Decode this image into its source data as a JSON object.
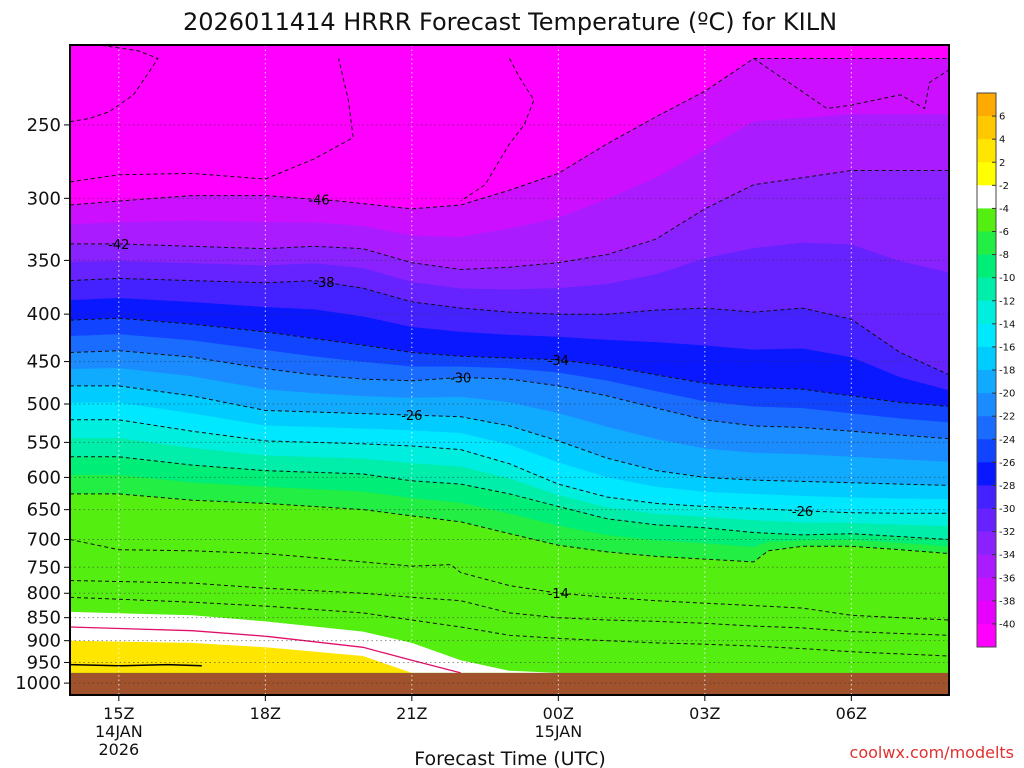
{
  "chart_data": {
    "type": "heatmap",
    "title": "2026011414 HRRR Forecast Temperature (ºC) for KILN",
    "xlabel": "Forecast Time (UTC)",
    "credit": "coolwx.com/modelts",
    "y_axis": {
      "scale": "pressure (log)",
      "range": [
        1030,
        205
      ],
      "ticks": [
        250,
        300,
        350,
        400,
        450,
        500,
        550,
        600,
        650,
        700,
        750,
        800,
        850,
        900,
        950,
        1000
      ]
    },
    "x_axis": {
      "range_hours": [
        14.0,
        32.0
      ],
      "ticks": [
        {
          "hour": 15,
          "label": "15Z",
          "sub": "14JAN",
          "sub2": "2026"
        },
        {
          "hour": 18,
          "label": "18Z",
          "sub": "",
          "sub2": ""
        },
        {
          "hour": 21,
          "label": "21Z",
          "sub": "",
          "sub2": ""
        },
        {
          "hour": 24,
          "label": "00Z",
          "sub": "15JAN",
          "sub2": ""
        },
        {
          "hour": 27,
          "label": "03Z",
          "sub": "",
          "sub2": ""
        },
        {
          "hour": 30,
          "label": "06Z",
          "sub": "",
          "sub2": ""
        }
      ]
    },
    "grid": "dotted",
    "ground_pressure": 975,
    "colorbar": {
      "labels": [
        "6",
        "4",
        "2",
        "-2",
        "-4",
        "-6",
        "-8",
        "-10",
        "-12",
        "-14",
        "-16",
        "-18",
        "-20",
        "-22",
        "-24",
        "-26",
        "-28",
        "-30",
        "-32",
        "-34",
        "-36",
        "-38",
        "-40"
      ],
      "colors": [
        "#ffaa00",
        "#ffc800",
        "#ffe600",
        "#ffff00",
        "#ffffff",
        "#55ee11",
        "#22ee44",
        "#00ee77",
        "#00eeaa",
        "#00eedd",
        "#00e8ff",
        "#00ccff",
        "#10aaff",
        "#1a8cff",
        "#1a6cff",
        "#1144ff",
        "#0a18ff",
        "#4422ff",
        "#6622ff",
        "#8a22ff",
        "#aa1cff",
        "#cc10ff",
        "#e800ff",
        "#ff00ff"
      ]
    },
    "isotherms": [
      {
        "temp": -46,
        "label": "-46",
        "label_at_hour": 19.1,
        "points": [
          [
            14,
            305
          ],
          [
            15,
            302
          ],
          [
            16.5,
            298
          ],
          [
            18,
            298
          ],
          [
            19.5,
            302
          ],
          [
            21,
            308
          ],
          [
            22,
            305
          ],
          [
            23,
            294
          ],
          [
            24,
            282
          ],
          [
            25,
            262
          ],
          [
            26,
            245
          ],
          [
            27,
            230
          ],
          [
            28,
            212
          ]
        ]
      },
      {
        "temp": -42,
        "label": "-42",
        "label_at_hour": 15.0,
        "points": [
          [
            14,
            336
          ],
          [
            15,
            336
          ],
          [
            16.5,
            338
          ],
          [
            18,
            340
          ],
          [
            19,
            338
          ],
          [
            20,
            340
          ],
          [
            21,
            352
          ],
          [
            22,
            358
          ],
          [
            23,
            356
          ],
          [
            24,
            352
          ],
          [
            25,
            345
          ],
          [
            26,
            332
          ],
          [
            27,
            308
          ],
          [
            28,
            290
          ],
          [
            29,
            285
          ],
          [
            30,
            280
          ]
        ]
      },
      {
        "temp": -38,
        "label": "-38",
        "label_at_hour": 19.2,
        "points": [
          [
            14,
            368
          ],
          [
            15,
            366
          ],
          [
            16.5,
            368
          ],
          [
            18,
            370
          ],
          [
            19,
            368
          ],
          [
            20,
            375
          ],
          [
            21,
            388
          ],
          [
            22,
            394
          ],
          [
            23,
            398
          ],
          [
            24,
            400
          ],
          [
            25,
            400
          ],
          [
            26,
            396
          ],
          [
            27,
            394
          ],
          [
            28,
            398
          ],
          [
            29,
            394
          ],
          [
            30,
            405
          ],
          [
            31,
            440
          ],
          [
            32,
            465
          ]
        ]
      },
      {
        "temp": -34,
        "label": "-34",
        "label_at_hour": 24.0,
        "points": [
          [
            14,
            406
          ],
          [
            15,
            404
          ],
          [
            16.5,
            410
          ],
          [
            18,
            418
          ],
          [
            19,
            425
          ],
          [
            20,
            432
          ],
          [
            21,
            440
          ],
          [
            22,
            444
          ],
          [
            23,
            446
          ],
          [
            24,
            448
          ],
          [
            25,
            455
          ],
          [
            26,
            465
          ],
          [
            27,
            475
          ],
          [
            28,
            480
          ],
          [
            29,
            482
          ],
          [
            30,
            490
          ],
          [
            31,
            498
          ],
          [
            32,
            503
          ]
        ]
      },
      {
        "temp": -30,
        "label": "-30",
        "label_at_hour": 22.0,
        "points": [
          [
            14,
            440
          ],
          [
            15,
            438
          ],
          [
            16.5,
            445
          ],
          [
            18,
            458
          ],
          [
            19,
            465
          ],
          [
            20,
            470
          ],
          [
            21,
            472
          ],
          [
            22,
            468
          ],
          [
            23,
            470
          ],
          [
            24,
            478
          ],
          [
            25,
            490
          ],
          [
            26,
            505
          ],
          [
            27,
            520
          ],
          [
            28,
            528
          ],
          [
            29,
            530
          ],
          [
            30,
            535
          ],
          [
            31,
            540
          ],
          [
            32,
            545
          ]
        ]
      },
      {
        "temp": -26,
        "label": "-26",
        "label_at_hour": 21.0,
        "points": [
          [
            14,
            478
          ],
          [
            15,
            478
          ],
          [
            16.5,
            490
          ],
          [
            18,
            508
          ],
          [
            19,
            510
          ],
          [
            20,
            512
          ],
          [
            21,
            514
          ],
          [
            22,
            516
          ],
          [
            23,
            528
          ],
          [
            24,
            548
          ],
          [
            25,
            572
          ],
          [
            26,
            590
          ],
          [
            27,
            600
          ],
          [
            28,
            604
          ],
          [
            29,
            606
          ],
          [
            30,
            608
          ],
          [
            31,
            610
          ],
          [
            32,
            612
          ]
        ]
      },
      {
        "temp": -26,
        "label": "-26",
        "label_at_hour": 29.0,
        "points": [
          [
            14,
            520
          ],
          [
            15,
            520
          ],
          [
            16.5,
            535
          ],
          [
            18,
            548
          ],
          [
            20,
            552
          ],
          [
            21,
            555
          ],
          [
            22,
            560
          ],
          [
            23,
            580
          ],
          [
            24,
            610
          ],
          [
            25,
            630
          ],
          [
            26,
            640
          ],
          [
            27,
            645
          ],
          [
            28,
            648
          ],
          [
            29,
            652
          ],
          [
            30,
            655
          ],
          [
            31,
            656
          ],
          [
            32,
            656
          ]
        ]
      },
      {
        "temp": -22,
        "label": "",
        "label_at_hour": null,
        "points": [
          [
            14,
            570
          ],
          [
            15,
            570
          ],
          [
            16.5,
            582
          ],
          [
            18,
            590
          ],
          [
            20,
            595
          ],
          [
            21,
            605
          ],
          [
            22,
            610
          ],
          [
            23,
            625
          ],
          [
            24,
            645
          ],
          [
            25,
            665
          ],
          [
            26,
            675
          ],
          [
            27,
            680
          ],
          [
            28,
            688
          ],
          [
            29,
            692
          ],
          [
            30,
            690
          ],
          [
            31,
            695
          ],
          [
            32,
            700
          ]
        ]
      },
      {
        "temp": -18,
        "label": "",
        "label_at_hour": null,
        "points": [
          [
            14,
            625
          ],
          [
            15,
            625
          ],
          [
            16.5,
            635
          ],
          [
            18,
            640
          ],
          [
            20,
            650
          ],
          [
            21,
            660
          ],
          [
            22,
            670
          ],
          [
            23,
            690
          ],
          [
            24,
            710
          ],
          [
            25,
            722
          ],
          [
            26,
            730
          ],
          [
            27,
            735
          ],
          [
            28,
            740
          ],
          [
            28.3,
            720
          ],
          [
            29,
            712
          ],
          [
            30,
            712
          ],
          [
            31,
            718
          ],
          [
            32,
            725
          ]
        ]
      },
      {
        "temp": -14,
        "label": "-14",
        "label_at_hour": 24.0,
        "points": [
          [
            14,
            700
          ],
          [
            15,
            718
          ],
          [
            16.5,
            720
          ],
          [
            18,
            725
          ],
          [
            20,
            740
          ],
          [
            21,
            748
          ],
          [
            21.8,
            745
          ],
          [
            22,
            760
          ],
          [
            23,
            785
          ],
          [
            24,
            800
          ],
          [
            25,
            808
          ],
          [
            26,
            815
          ],
          [
            27,
            820
          ],
          [
            28,
            825
          ],
          [
            29,
            830
          ],
          [
            30,
            845
          ],
          [
            31,
            850
          ],
          [
            32,
            855
          ]
        ]
      },
      {
        "temp": -10,
        "label": "",
        "label_at_hour": null,
        "points": [
          [
            14,
            775
          ],
          [
            15,
            777
          ],
          [
            16.5,
            780
          ],
          [
            18,
            790
          ],
          [
            20,
            800
          ],
          [
            21,
            808
          ],
          [
            22,
            815
          ],
          [
            23,
            840
          ],
          [
            24,
            850
          ],
          [
            25,
            855
          ],
          [
            26,
            858
          ],
          [
            27,
            862
          ],
          [
            28,
            868
          ],
          [
            29,
            872
          ],
          [
            30,
            880
          ],
          [
            31,
            884
          ],
          [
            32,
            888
          ]
        ]
      },
      {
        "temp": -6,
        "label": "",
        "label_at_hour": null,
        "points": [
          [
            14,
            808
          ],
          [
            15,
            812
          ],
          [
            16.5,
            818
          ],
          [
            18,
            826
          ],
          [
            20,
            840
          ],
          [
            21,
            855
          ],
          [
            22,
            870
          ],
          [
            23,
            888
          ],
          [
            24,
            895
          ],
          [
            25,
            900
          ],
          [
            26,
            905
          ],
          [
            27,
            908
          ],
          [
            28,
            912
          ],
          [
            29,
            918
          ],
          [
            30,
            925
          ],
          [
            31,
            930
          ],
          [
            32,
            935
          ]
        ]
      }
    ],
    "warm_layer": {
      "description": "above-freezing layer near surface",
      "top_points": [
        [
          14,
          838
        ],
        [
          16.5,
          845
        ],
        [
          18,
          858
        ],
        [
          20,
          880
        ],
        [
          21,
          905
        ],
        [
          22,
          945
        ],
        [
          23,
          970
        ],
        [
          24,
          975
        ]
      ],
      "bottom_points": [
        [
          14,
          958
        ],
        [
          16.5,
          962
        ],
        [
          18,
          968
        ],
        [
          20,
          972
        ],
        [
          21,
          975
        ]
      ]
    }
  }
}
